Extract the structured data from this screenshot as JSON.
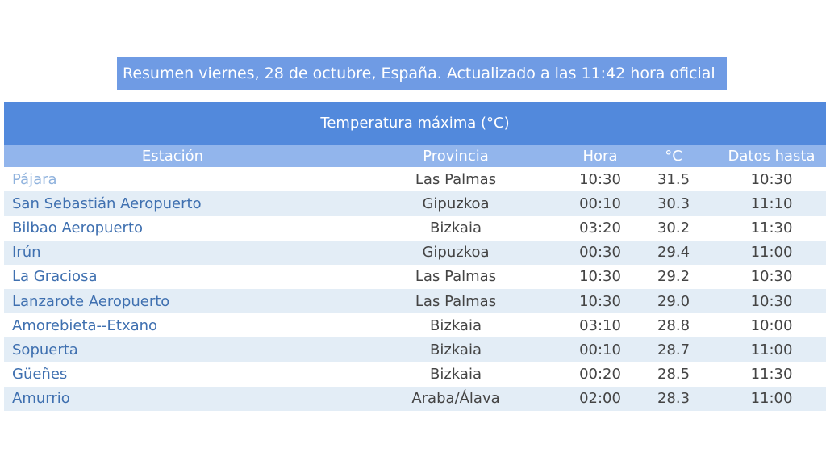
{
  "summary": "Resumen viernes, 28 de octubre, España. Actualizado a las 11:42 hora oficial",
  "table": {
    "title": "Temperatura máxima (°C)",
    "headers": {
      "estacion": "Estación",
      "provincia": "Provincia",
      "hora": "Hora",
      "temp": "°C",
      "datos": "Datos hasta"
    },
    "rows": [
      {
        "estacion": "Pájara",
        "provincia": "Las Palmas",
        "hora": "10:30",
        "temp": "31.5",
        "datos": "10:30"
      },
      {
        "estacion": "San Sebastián Aeropuerto",
        "provincia": "Gipuzkoa",
        "hora": "00:10",
        "temp": "30.3",
        "datos": "11:10"
      },
      {
        "estacion": "Bilbao Aeropuerto",
        "provincia": "Bizkaia",
        "hora": "03:20",
        "temp": "30.2",
        "datos": "11:30"
      },
      {
        "estacion": "Irún",
        "provincia": "Gipuzkoa",
        "hora": "00:30",
        "temp": "29.4",
        "datos": "11:00"
      },
      {
        "estacion": "La Graciosa",
        "provincia": "Las Palmas",
        "hora": "10:30",
        "temp": "29.2",
        "datos": "10:30"
      },
      {
        "estacion": "Lanzarote Aeropuerto",
        "provincia": "Las Palmas",
        "hora": "10:30",
        "temp": "29.0",
        "datos": "10:30"
      },
      {
        "estacion": "Amorebieta--Etxano",
        "provincia": "Bizkaia",
        "hora": "03:10",
        "temp": "28.8",
        "datos": "10:00"
      },
      {
        "estacion": "Sopuerta",
        "provincia": "Bizkaia",
        "hora": "00:10",
        "temp": "28.7",
        "datos": "11:00"
      },
      {
        "estacion": "Güeñes",
        "provincia": "Bizkaia",
        "hora": "00:20",
        "temp": "28.5",
        "datos": "11:30"
      },
      {
        "estacion": "Amurrio",
        "provincia": "Araba/Álava",
        "hora": "02:00",
        "temp": "28.3",
        "datos": "11:00"
      }
    ]
  }
}
